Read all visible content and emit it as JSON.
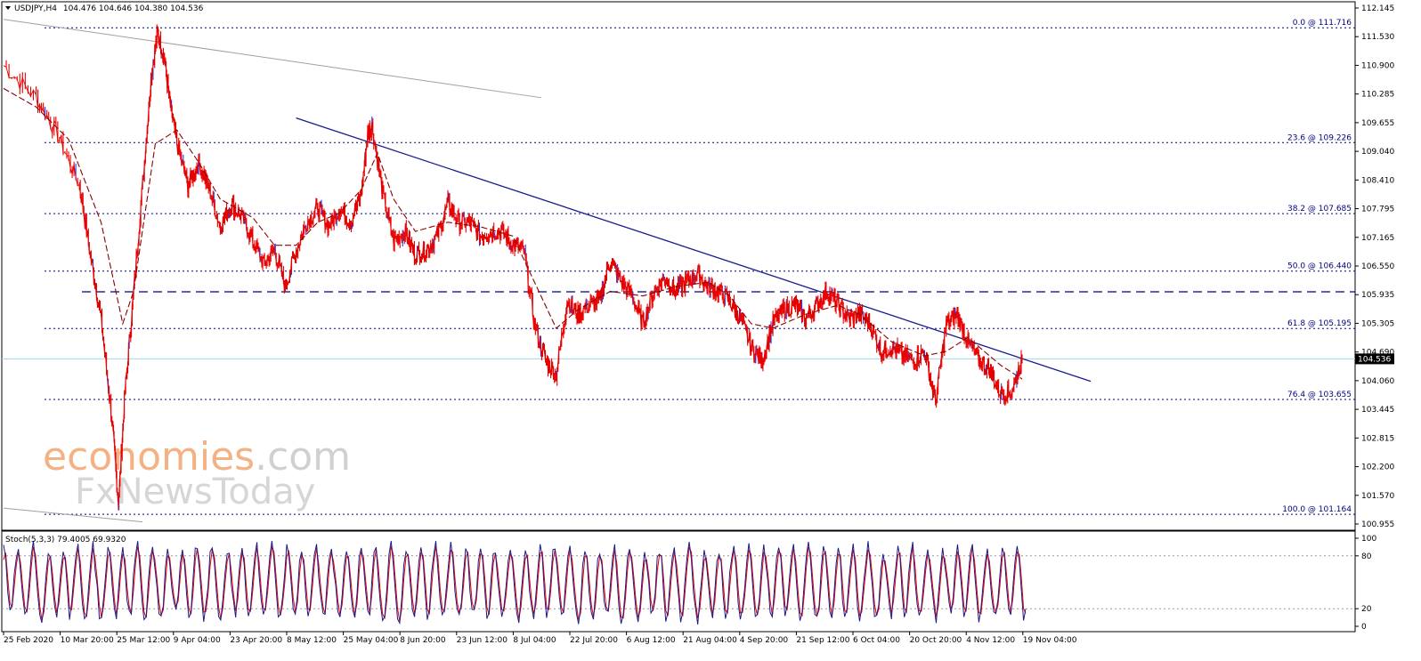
{
  "header": {
    "symbol": "USDJPY,H4",
    "ohlc": "104.476 104.646 104.380 104.536"
  },
  "stoch_header": "Stoch(5,3,3) 79.4005 69.9320",
  "watermark": {
    "line1_a": "economies",
    "line1_b": ".com",
    "line2": "FxNewsToday"
  },
  "colors": {
    "candle": "#e60000",
    "candle_alt": "#1e3cff",
    "ma": "#8b0000",
    "trendline": "#1a1a8c",
    "fibo": "#000080",
    "stoch_main": "#1a1a8c",
    "stoch_signal": "#e60000",
    "current_price_line": "#9fd8e8",
    "watermark_orange": "#f4b183",
    "watermark_grey": "#d0d0d0"
  },
  "chart_data": [
    {
      "type": "line",
      "title": "",
      "price_axis": {
        "ticks": [
          "112.145",
          "111.530",
          "110.900",
          "110.285",
          "109.655",
          "109.040",
          "108.410",
          "107.795",
          "107.165",
          "106.550",
          "105.935",
          "105.305",
          "104.690",
          "104.060",
          "103.445",
          "102.815",
          "102.200",
          "101.570",
          "100.955"
        ],
        "range": [
          100.955,
          112.145
        ],
        "current_price": "104.536"
      },
      "x_ticks": [
        "25 Feb 2020",
        "10 Mar 20:00",
        "25 Mar 12:00",
        "9 Apr 04:00",
        "23 Apr 20:00",
        "8 May 12:00",
        "25 May 04:00",
        "8 Jun 20:00",
        "23 Jun 12:00",
        "8 Jul 04:00",
        "22 Jul 20:00",
        "6 Aug 12:00",
        "21 Aug 04:00",
        "4 Sep 20:00",
        "21 Sep 12:00",
        "6 Oct 04:00",
        "20 Oct 20:00",
        "4 Nov 12:00",
        "19 Nov 04:00"
      ],
      "fibonacci": [
        {
          "label": "0.0 @ 111.716",
          "price": 111.716
        },
        {
          "label": "23.6 @ 109.226",
          "price": 109.226
        },
        {
          "label": "38.2 @ 107.685",
          "price": 107.685
        },
        {
          "label": "50.0 @ 106.440",
          "price": 106.44
        },
        {
          "label": "61.8 @ 105.195",
          "price": 105.195
        },
        {
          "label": "76.4 @ 103.655",
          "price": 103.655
        },
        {
          "label": "100.0 @ 101.164",
          "price": 101.164
        }
      ],
      "support_line": 105.99,
      "price_path": [
        [
          0,
          110.9
        ],
        [
          3,
          110.2
        ],
        [
          5,
          109.4
        ],
        [
          7,
          108.3
        ],
        [
          8,
          106.8
        ],
        [
          9,
          105.4
        ],
        [
          10,
          103.2
        ],
        [
          10.6,
          101.4
        ],
        [
          11.2,
          103.8
        ],
        [
          12,
          106.0
        ],
        [
          13,
          108.8
        ],
        [
          13.6,
          110.6
        ],
        [
          14.2,
          111.6
        ],
        [
          14.8,
          111.1
        ],
        [
          15.4,
          110.0
        ],
        [
          16,
          109.2
        ],
        [
          17,
          108.3
        ],
        [
          18,
          108.8
        ],
        [
          19,
          108.2
        ],
        [
          20,
          107.4
        ],
        [
          21,
          107.9
        ],
        [
          22,
          107.6
        ],
        [
          23,
          107.1
        ],
        [
          24,
          106.6
        ],
        [
          25,
          106.9
        ],
        [
          26,
          106.1
        ],
        [
          27,
          106.9
        ],
        [
          28,
          107.5
        ],
        [
          29,
          107.8
        ],
        [
          30,
          107.4
        ],
        [
          31,
          107.8
        ],
        [
          32,
          107.5
        ],
        [
          33,
          108.1
        ],
        [
          33.6,
          109.4
        ],
        [
          34,
          109.6
        ],
        [
          35,
          108.1
        ],
        [
          36,
          107.1
        ],
        [
          37,
          107.3
        ],
        [
          38,
          106.8
        ],
        [
          39,
          106.9
        ],
        [
          40,
          107.2
        ],
        [
          41,
          107.9
        ],
        [
          42,
          107.5
        ],
        [
          43,
          107.5
        ],
        [
          44,
          107.2
        ],
        [
          45,
          107.3
        ],
        [
          46,
          107.3
        ],
        [
          47,
          107.0
        ],
        [
          48,
          106.9
        ],
        [
          49,
          105.3
        ],
        [
          50,
          104.5
        ],
        [
          51,
          104.2
        ],
        [
          52,
          105.8
        ],
        [
          53,
          105.5
        ],
        [
          54,
          105.7
        ],
        [
          55,
          105.8
        ],
        [
          56,
          106.7
        ],
        [
          57,
          106.2
        ],
        [
          58,
          105.9
        ],
        [
          59,
          105.3
        ],
        [
          60,
          106.0
        ],
        [
          61,
          106.3
        ],
        [
          62,
          106.0
        ],
        [
          63,
          106.2
        ],
        [
          64,
          106.4
        ],
        [
          65,
          106.1
        ],
        [
          66,
          106.0
        ],
        [
          67,
          105.8
        ],
        [
          68,
          105.4
        ],
        [
          69,
          104.8
        ],
        [
          70,
          104.5
        ],
        [
          71,
          105.3
        ],
        [
          72,
          105.6
        ],
        [
          73,
          105.7
        ],
        [
          74,
          105.4
        ],
        [
          75,
          105.7
        ],
        [
          76,
          106.0
        ],
        [
          77,
          105.7
        ],
        [
          78,
          105.4
        ],
        [
          79,
          105.5
        ],
        [
          80,
          105.3
        ],
        [
          81,
          104.7
        ],
        [
          82,
          104.8
        ],
        [
          83,
          104.6
        ],
        [
          84,
          104.5
        ],
        [
          85,
          104.7
        ],
        [
          86,
          103.6
        ],
        [
          87,
          105.3
        ],
        [
          88,
          105.5
        ],
        [
          89,
          104.9
        ],
        [
          90,
          104.5
        ],
        [
          91,
          104.3
        ],
        [
          92,
          103.8
        ],
        [
          93,
          103.8
        ],
        [
          94,
          104.54
        ]
      ],
      "moving_average": [
        [
          0,
          110.4
        ],
        [
          3,
          110.0
        ],
        [
          6,
          109.3
        ],
        [
          9,
          107.5
        ],
        [
          11,
          105.3
        ],
        [
          12,
          106.0
        ],
        [
          14,
          109.2
        ],
        [
          16,
          109.5
        ],
        [
          18,
          108.8
        ],
        [
          20,
          108.0
        ],
        [
          23,
          107.6
        ],
        [
          25,
          107.0
        ],
        [
          27,
          107.0
        ],
        [
          29,
          107.5
        ],
        [
          31,
          107.7
        ],
        [
          33,
          108.2
        ],
        [
          34.5,
          109.0
        ],
        [
          36,
          108.0
        ],
        [
          38,
          107.3
        ],
        [
          41,
          107.5
        ],
        [
          44,
          107.4
        ],
        [
          47,
          107.2
        ],
        [
          49,
          106.2
        ],
        [
          51,
          105.2
        ],
        [
          53,
          105.6
        ],
        [
          56,
          106.0
        ],
        [
          59,
          105.9
        ],
        [
          62,
          106.1
        ],
        [
          65,
          106.2
        ],
        [
          67,
          105.9
        ],
        [
          69,
          105.3
        ],
        [
          71,
          105.2
        ],
        [
          74,
          105.5
        ],
        [
          77,
          105.7
        ],
        [
          79,
          105.5
        ],
        [
          82,
          104.9
        ],
        [
          85,
          104.6
        ],
        [
          87,
          104.7
        ],
        [
          89,
          105.0
        ],
        [
          92,
          104.4
        ],
        [
          94,
          104.1
        ]
      ],
      "trendlines": [
        {
          "from": [
            0,
            111.9
          ],
          "to": [
            37.5,
            110.2
          ]
        },
        {
          "from": [
            27,
            109.76
          ],
          "to": [
            76,
            104.1
          ]
        },
        {
          "from": [
            0,
            101.3
          ],
          "to": [
            10,
            101.0
          ]
        }
      ]
    },
    {
      "type": "line",
      "title": "Stoch(5,3,3) 79.4005 69.9320",
      "ylim": [
        0,
        100
      ],
      "ticks": [
        "100",
        "80",
        "20",
        "0"
      ],
      "levels": [
        80,
        20
      ],
      "series": [
        {
          "name": "main",
          "last": 79.4005
        },
        {
          "name": "signal",
          "last": 69.932
        }
      ],
      "cycle_pattern": [
        88,
        72,
        35,
        12,
        20,
        55,
        82,
        90,
        60,
        28,
        10,
        18,
        48,
        78,
        92,
        70,
        40,
        15,
        8,
        30,
        65,
        88,
        76,
        45,
        22,
        14,
        40,
        72
      ]
    }
  ]
}
